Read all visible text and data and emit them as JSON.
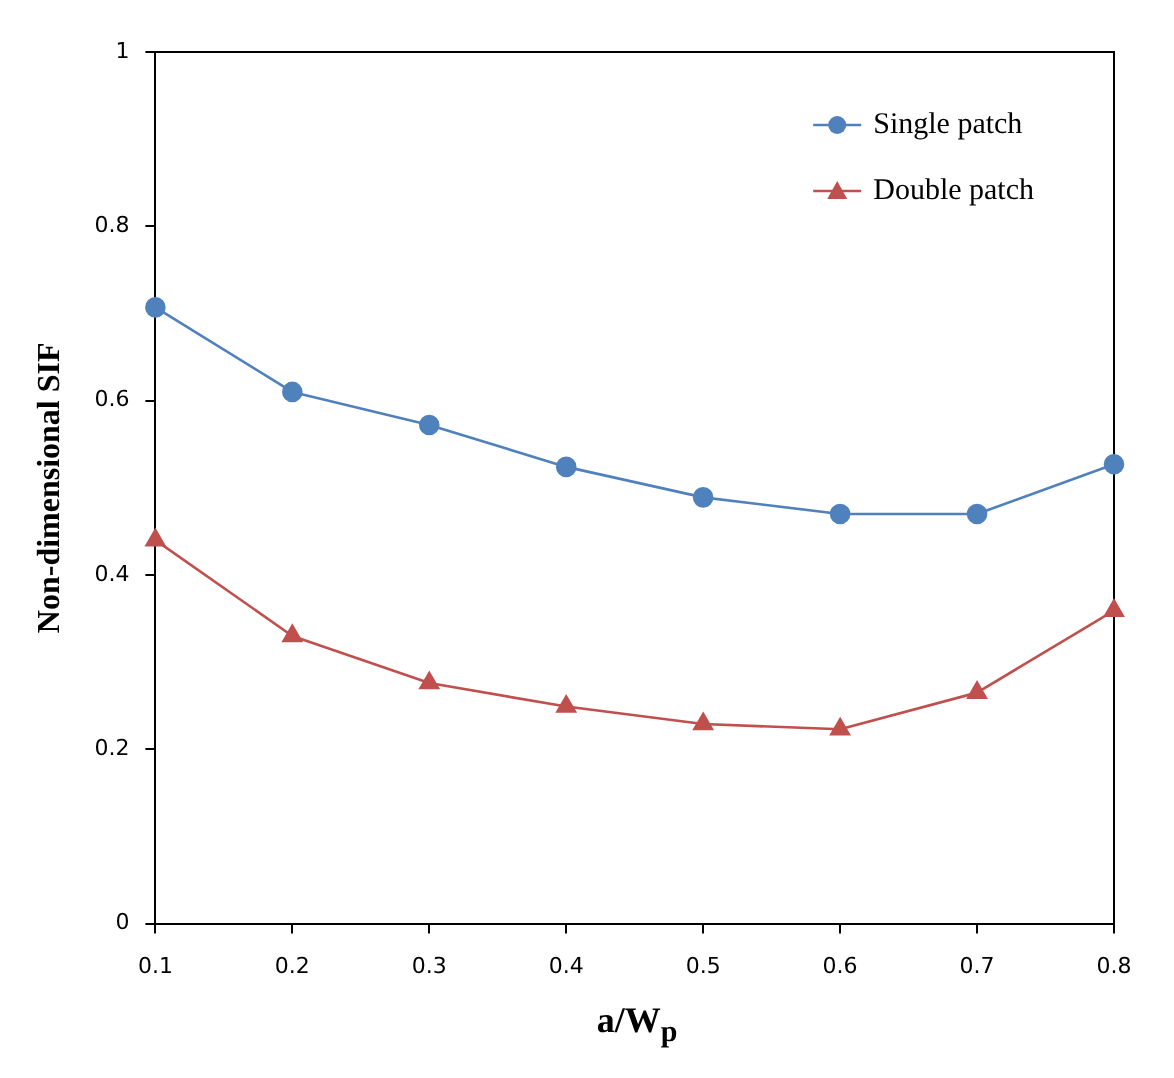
{
  "chart_data": {
    "type": "line",
    "xlabel": "a/W$_{p}$",
    "ylabel": "Non-dimensional SIF",
    "x": [
      0.1,
      0.2,
      0.3,
      0.4,
      0.5,
      0.6,
      0.7,
      0.8
    ],
    "xlim": [
      0.1,
      0.8
    ],
    "xticks": [
      0.1,
      0.2,
      0.3,
      0.4,
      0.5,
      0.6,
      0.7,
      0.8
    ],
    "ylim": [
      0,
      1
    ],
    "yticks": [
      0,
      0.2,
      0.4,
      0.6,
      0.8,
      1
    ],
    "grid": false,
    "legend": "top right",
    "line_style": "solid",
    "series": [
      {
        "name": "Single patch",
        "color": "#4f81bd",
        "marker": "circle",
        "values": [
          0.707,
          0.61,
          0.572,
          0.524,
          0.489,
          0.47,
          0.47,
          0.527
        ]
      },
      {
        "name": "Double patch",
        "color": "#c0504d",
        "marker": "triangle",
        "values": [
          0.44,
          0.33,
          0.276,
          0.249,
          0.229,
          0.223,
          0.265,
          0.359
        ]
      }
    ]
  }
}
